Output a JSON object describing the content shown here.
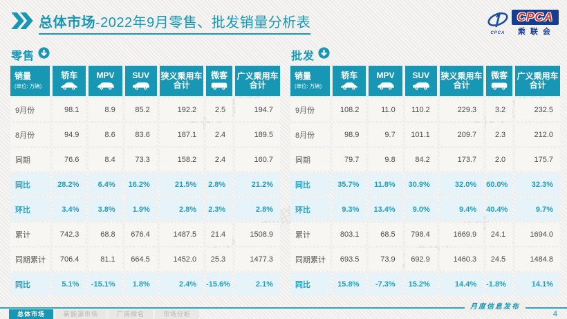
{
  "header": {
    "title_bold": "总体市场",
    "title_rest": "-2022年9月零售、批发销量分析表",
    "logo": {
      "cpca": "CPCA",
      "sub": "乘联会",
      "small": "CPCA"
    }
  },
  "columns": [
    {
      "label": "销量",
      "unit": "(单位: 万辆)",
      "icon": null
    },
    {
      "label": "轿车",
      "icon": "sedan-icon"
    },
    {
      "label": "MPV",
      "icon": "mpv-icon"
    },
    {
      "label": "SUV",
      "icon": "suv-icon"
    },
    {
      "label": "狭义乘用车 合计",
      "icon": null
    },
    {
      "label": "微客",
      "icon": "microvan-icon"
    },
    {
      "label": "广义乘用车 合计",
      "icon": null
    }
  ],
  "tables": [
    {
      "name": "零售",
      "rows": [
        {
          "label": "9月份",
          "highlight": false,
          "values": [
            "98.1",
            "8.9",
            "85.2",
            "192.2",
            "2.5",
            "194.7"
          ]
        },
        {
          "label": "8月份",
          "highlight": false,
          "values": [
            "94.9",
            "8.6",
            "83.6",
            "187.1",
            "2.4",
            "189.5"
          ]
        },
        {
          "label": "同期",
          "highlight": false,
          "values": [
            "76.6",
            "8.4",
            "73.3",
            "158.2",
            "2.4",
            "160.7"
          ]
        },
        {
          "label": "同比",
          "highlight": true,
          "values": [
            "28.2%",
            "6.4%",
            "16.2%",
            "21.5%",
            "2.8%",
            "21.2%"
          ]
        },
        {
          "label": "环比",
          "highlight": true,
          "values": [
            "3.4%",
            "3.8%",
            "1.9%",
            "2.8%",
            "2.3%",
            "2.8%"
          ]
        },
        {
          "label": "累计",
          "highlight": false,
          "values": [
            "742.3",
            "68.8",
            "676.4",
            "1487.5",
            "21.4",
            "1508.9"
          ]
        },
        {
          "label": "同期累计",
          "highlight": false,
          "values": [
            "706.4",
            "81.1",
            "664.5",
            "1452.0",
            "25.3",
            "1477.3"
          ]
        },
        {
          "label": "同比",
          "highlight": true,
          "values": [
            "5.1%",
            "-15.1%",
            "1.8%",
            "2.4%",
            "-15.6%",
            "2.1%"
          ]
        }
      ]
    },
    {
      "name": "批发",
      "rows": [
        {
          "label": "9月份",
          "highlight": false,
          "values": [
            "108.2",
            "11.0",
            "110.2",
            "229.3",
            "3.2",
            "232.5"
          ]
        },
        {
          "label": "8月份",
          "highlight": false,
          "values": [
            "98.9",
            "9.7",
            "101.1",
            "209.7",
            "2.3",
            "212.0"
          ]
        },
        {
          "label": "同期",
          "highlight": false,
          "values": [
            "79.7",
            "9.8",
            "84.2",
            "173.7",
            "2.0",
            "175.7"
          ]
        },
        {
          "label": "同比",
          "highlight": true,
          "values": [
            "35.7%",
            "11.8%",
            "30.9%",
            "32.0%",
            "60.0%",
            "32.3%"
          ]
        },
        {
          "label": "环比",
          "highlight": true,
          "values": [
            "9.3%",
            "13.4%",
            "9.0%",
            "9.4%",
            "40.4%",
            "9.7%"
          ]
        },
        {
          "label": "累计",
          "highlight": false,
          "values": [
            "803.1",
            "68.5",
            "798.4",
            "1669.9",
            "24.1",
            "1694.0"
          ]
        },
        {
          "label": "同期累计",
          "highlight": false,
          "values": [
            "693.5",
            "73.9",
            "692.9",
            "1460.3",
            "24.5",
            "1484.8"
          ]
        },
        {
          "label": "同比",
          "highlight": true,
          "values": [
            "15.8%",
            "-7.3%",
            "15.2%",
            "14.4%",
            "-1.8%",
            "14.1%"
          ]
        }
      ]
    }
  ],
  "watermark": {
    "text": "CPCA 乘联会"
  },
  "footer": {
    "publication": "月度信息发布",
    "page": "4",
    "tabs": [
      "总体市场",
      "新能源市场",
      "厂商排名",
      "市场分析"
    ]
  },
  "icons": [
    "double-chevron-icon",
    "download-circle-icon",
    "sedan-icon",
    "mpv-icon",
    "suv-icon",
    "microvan-icon",
    "cpca-emblem-icon"
  ],
  "colors": {
    "accent": "#1797b3",
    "highlight_bg": "#e6f3f8",
    "highlight_text": "#1f9fc0",
    "logo_navy": "#173d8d",
    "logo_red": "#d5322e"
  }
}
